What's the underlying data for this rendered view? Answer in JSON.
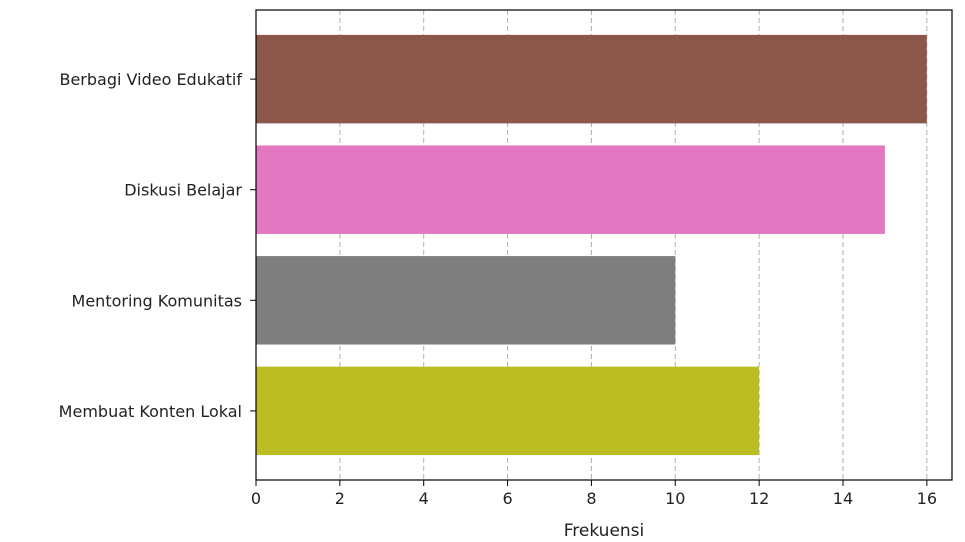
{
  "chart_data": {
    "type": "bar",
    "orientation": "horizontal",
    "title": "",
    "xlabel": "Frekuensi",
    "ylabel": "",
    "xlim": [
      0,
      16.6
    ],
    "x_ticks": [
      0,
      2,
      4,
      6,
      8,
      10,
      12,
      14,
      16
    ],
    "grid": {
      "x": true,
      "y": false,
      "style": "dashed"
    },
    "legend": "none",
    "categories": [
      "Berbagi Video Edukatif",
      "Diskusi Belajar",
      "Mentoring Komunitas",
      "Membuat Konten Lokal"
    ],
    "values": [
      16,
      15,
      10,
      12
    ],
    "colors": [
      "#8c564b",
      "#e377c2",
      "#7f7f7f",
      "#bcbd22"
    ]
  }
}
